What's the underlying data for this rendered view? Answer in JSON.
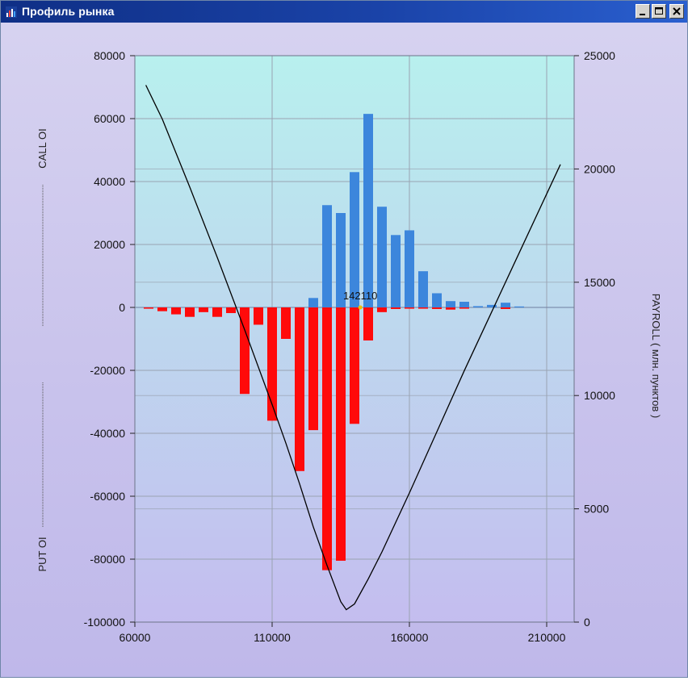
{
  "window": {
    "title": "Профиль рынка",
    "icon": "chart-app-icon",
    "controls": {
      "minimize": "minimize-icon",
      "maximize": "maximize-icon",
      "close": "close-icon"
    }
  },
  "colors": {
    "title_bar": "#1a43a8",
    "plot_top": "#b8f0ee",
    "plot_bottom": "#c4bdef",
    "call_bars": "#3c86dc",
    "put_bars": "#ff0a0a",
    "payroll_line": "#000000",
    "grid": "#9aa3b2"
  },
  "chart_data": {
    "type": "bar",
    "x_ticks": [
      60000,
      110000,
      160000,
      210000
    ],
    "xlim": [
      60000,
      220000
    ],
    "left_axis": {
      "ylim": [
        -100000,
        80000
      ],
      "ticks": [
        80000,
        60000,
        40000,
        20000,
        0,
        -20000,
        -40000,
        -60000,
        -80000,
        -100000
      ]
    },
    "right_axis": {
      "label": "PAYROLL  ( млн. пунктов )",
      "ylim": [
        0,
        25000
      ],
      "ticks": [
        25000,
        20000,
        15000,
        10000,
        5000,
        0
      ]
    },
    "left_labels": {
      "top": "CALL OI",
      "bottom": "PUT OI"
    },
    "annotation": {
      "text": "142110",
      "x": 142110,
      "y": 0
    },
    "call_oi": {
      "x": [
        125000,
        130000,
        135000,
        140000,
        145000,
        150000,
        155000,
        160000,
        165000,
        170000,
        175000,
        180000,
        185000,
        190000,
        195000,
        200000
      ],
      "values": [
        3000,
        32500,
        30000,
        43000,
        61500,
        32000,
        23000,
        24500,
        11500,
        4500,
        2000,
        1800,
        400,
        800,
        1500,
        300
      ]
    },
    "put_oi": {
      "x": [
        65000,
        70000,
        75000,
        80000,
        85000,
        90000,
        95000,
        100000,
        105000,
        110000,
        115000,
        120000,
        125000,
        130000,
        135000,
        140000,
        145000,
        150000,
        155000,
        160000,
        165000,
        170000,
        175000,
        180000,
        195000
      ],
      "values": [
        -400,
        -1200,
        -2200,
        -3000,
        -1500,
        -3000,
        -1800,
        -27500,
        -5500,
        -36000,
        -10000,
        -52000,
        -39000,
        -83500,
        -80500,
        -37000,
        -10500,
        -1500,
        -500,
        -400,
        -400,
        -500,
        -700,
        -400,
        -500
      ]
    },
    "payroll": {
      "x": [
        64000,
        70000,
        80000,
        90000,
        100000,
        110000,
        115000,
        120000,
        125000,
        130000,
        135000,
        137000,
        140000,
        145000,
        150000,
        160000,
        170000,
        180000,
        190000,
        200000,
        210000,
        215000
      ],
      "y": [
        23700,
        22200,
        19200,
        16100,
        12900,
        9600,
        7900,
        6100,
        4200,
        2500,
        900,
        550,
        800,
        1900,
        3100,
        5700,
        8400,
        11100,
        13700,
        16300,
        18900,
        20200
      ]
    }
  }
}
